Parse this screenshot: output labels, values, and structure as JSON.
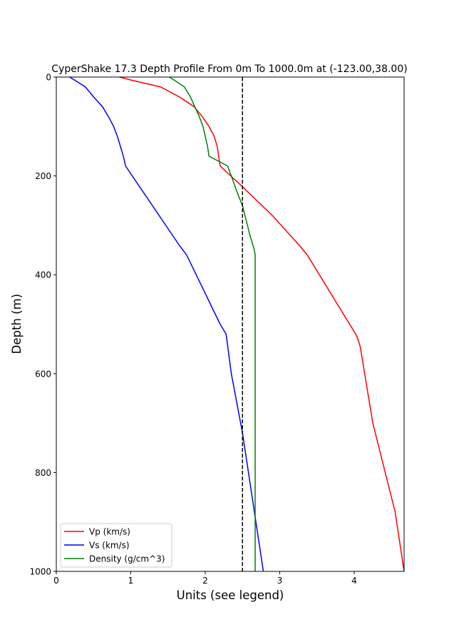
{
  "chart_data": {
    "type": "line",
    "title": "CyperShake 17.3 Depth Profile From 0m To 1000.0m at (-123.00,38.00)",
    "xlabel": "Units (see legend)",
    "ylabel": "Depth (m)",
    "xlim": [
      0,
      4.67
    ],
    "ylim": [
      1000,
      0
    ],
    "y_inverted": true,
    "x_ticks": [
      "0",
      "1",
      "2",
      "3",
      "4"
    ],
    "y_ticks": [
      "0",
      "200",
      "400",
      "600",
      "800",
      "1000"
    ],
    "grid": false,
    "legend_position": "lower-left",
    "reference_line": {
      "x": 2.5,
      "style": "dashed",
      "color": "#000000"
    },
    "series": [
      {
        "name": "Vp (km/s)",
        "color": "#ff0000",
        "points": [
          {
            "x": 0.85,
            "y": 0
          },
          {
            "x": 1.0,
            "y": 6
          },
          {
            "x": 1.4,
            "y": 20
          },
          {
            "x": 1.65,
            "y": 40
          },
          {
            "x": 1.85,
            "y": 60
          },
          {
            "x": 1.96,
            "y": 80
          },
          {
            "x": 2.05,
            "y": 100
          },
          {
            "x": 2.12,
            "y": 120
          },
          {
            "x": 2.16,
            "y": 140
          },
          {
            "x": 2.18,
            "y": 160
          },
          {
            "x": 2.2,
            "y": 180
          },
          {
            "x": 2.5,
            "y": 222
          },
          {
            "x": 2.9,
            "y": 280
          },
          {
            "x": 3.26,
            "y": 340
          },
          {
            "x": 3.37,
            "y": 360
          },
          {
            "x": 4.02,
            "y": 520
          },
          {
            "x": 4.05,
            "y": 530
          },
          {
            "x": 4.08,
            "y": 545
          },
          {
            "x": 4.25,
            "y": 700
          },
          {
            "x": 4.55,
            "y": 880
          },
          {
            "x": 4.67,
            "y": 1000
          }
        ]
      },
      {
        "name": "Vs (km/s)",
        "color": "#0000ff",
        "points": [
          {
            "x": 0.18,
            "y": 0
          },
          {
            "x": 0.39,
            "y": 20
          },
          {
            "x": 0.5,
            "y": 40
          },
          {
            "x": 0.62,
            "y": 60
          },
          {
            "x": 0.7,
            "y": 80
          },
          {
            "x": 0.77,
            "y": 100
          },
          {
            "x": 0.82,
            "y": 120
          },
          {
            "x": 0.86,
            "y": 140
          },
          {
            "x": 0.9,
            "y": 160
          },
          {
            "x": 0.93,
            "y": 180
          },
          {
            "x": 1.65,
            "y": 340
          },
          {
            "x": 1.75,
            "y": 360
          },
          {
            "x": 2.2,
            "y": 500
          },
          {
            "x": 2.28,
            "y": 520
          },
          {
            "x": 2.35,
            "y": 600
          },
          {
            "x": 2.5,
            "y": 720
          },
          {
            "x": 2.78,
            "y": 1000
          }
        ]
      },
      {
        "name": "Density (g/cm^3)",
        "color": "#008000",
        "points": [
          {
            "x": 1.52,
            "y": 0
          },
          {
            "x": 1.72,
            "y": 20
          },
          {
            "x": 1.8,
            "y": 40
          },
          {
            "x": 1.86,
            "y": 60
          },
          {
            "x": 1.92,
            "y": 80
          },
          {
            "x": 1.97,
            "y": 100
          },
          {
            "x": 2.0,
            "y": 120
          },
          {
            "x": 2.03,
            "y": 140
          },
          {
            "x": 2.05,
            "y": 160
          },
          {
            "x": 2.3,
            "y": 180
          },
          {
            "x": 2.35,
            "y": 200
          },
          {
            "x": 2.42,
            "y": 230
          },
          {
            "x": 2.5,
            "y": 260
          },
          {
            "x": 2.6,
            "y": 320
          },
          {
            "x": 2.66,
            "y": 350
          },
          {
            "x": 2.67,
            "y": 360
          },
          {
            "x": 2.67,
            "y": 1000
          }
        ]
      }
    ]
  }
}
